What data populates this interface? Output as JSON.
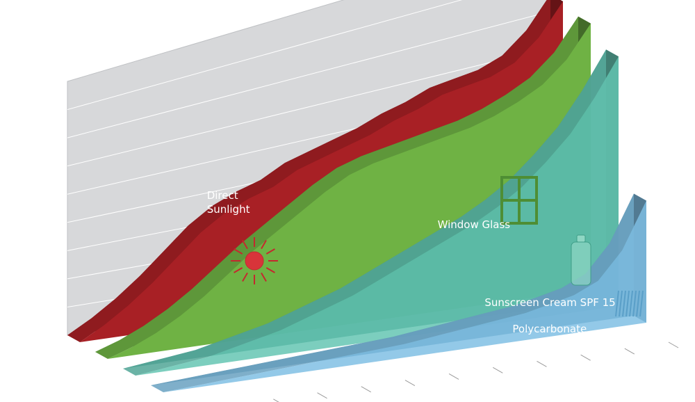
{
  "chart_data": {
    "type": "area",
    "title": "",
    "xlabel": "",
    "ylabel": "",
    "grid": true,
    "legend": "inline labels on each layer",
    "x": [
      0,
      5,
      10,
      15,
      20,
      25,
      30,
      35,
      40,
      45,
      50,
      55,
      60,
      65,
      70,
      75,
      80,
      85,
      90,
      95,
      100
    ],
    "xlim": [
      0,
      100
    ],
    "ylim": [
      0,
      100
    ],
    "series": [
      {
        "name": "Direct Sunlight",
        "color": "#a82025",
        "values": [
          0,
          5,
          11,
          18,
          26,
          34,
          40,
          44,
          47,
          52,
          55,
          58,
          61,
          65,
          68,
          72,
          74,
          76,
          80,
          88,
          100
        ]
      },
      {
        "name": "Window Glass",
        "color": "#6fb244",
        "values": [
          0,
          3,
          7,
          12,
          18,
          25,
          32,
          38,
          44,
          50,
          55,
          58,
          60,
          62,
          64,
          66,
          69,
          73,
          78,
          86,
          98
        ]
      },
      {
        "name": "Sunscreen Cream SPF 15",
        "color": "#5fc3b0",
        "values": [
          0,
          1,
          2,
          3,
          5,
          7,
          9,
          12,
          15,
          18,
          22,
          26,
          30,
          34,
          38,
          43,
          49,
          57,
          66,
          78,
          92
        ]
      },
      {
        "name": "Polycarbonate",
        "color": "#7bbde3",
        "values": [
          0,
          0.5,
          1,
          1.5,
          2,
          2.5,
          3,
          3.5,
          4,
          4.5,
          5,
          6,
          7,
          8,
          9,
          10,
          12,
          14,
          18,
          28,
          45
        ]
      }
    ]
  },
  "icons": {
    "sun": "sun-icon",
    "window": "window-icon",
    "bottle": "bottle-icon",
    "sheets": "polycarbonate-sheets-icon"
  }
}
